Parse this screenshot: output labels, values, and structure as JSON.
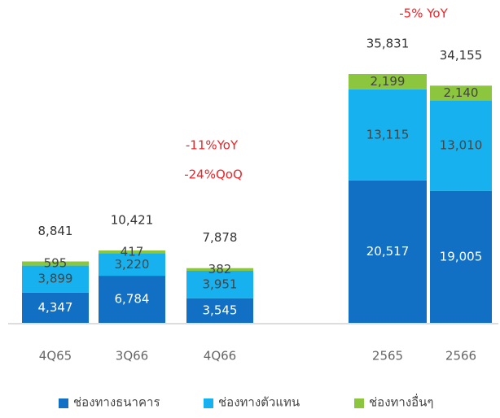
{
  "chart_data": {
    "type": "stacked_bar",
    "categories": [
      "4Q65",
      "3Q66",
      "4Q66",
      "2565",
      "2566"
    ],
    "series": [
      {
        "name": "ช่องทางธนาคาร",
        "color": "#1170c4",
        "values": [
          4347,
          6784,
          3545,
          20517,
          19005
        ],
        "value_labels": [
          "4,347",
          "6,784",
          "3,545",
          "20,517",
          "19,005"
        ]
      },
      {
        "name": "ช่องทางตัวแทน",
        "color": "#16b1ee",
        "values": [
          3899,
          3220,
          3951,
          13115,
          13010
        ],
        "value_labels": [
          "3,899",
          "3,220",
          "3,951",
          "13,115",
          "13,010"
        ]
      },
      {
        "name": "ช่องทางอื่นๆ",
        "color": "#8cc63e",
        "values": [
          595,
          417,
          382,
          2199,
          2140
        ],
        "value_labels": [
          "595",
          "417",
          "382",
          "2,199",
          "2,140"
        ]
      }
    ],
    "totals": [
      8841,
      10421,
      7878,
      35831,
      34155
    ],
    "total_labels": [
      "8,841",
      "10,421",
      "7,878",
      "35,831",
      "34,155"
    ],
    "annotations": [
      "-11%YoY",
      "-24%QoQ",
      "-5% YoY"
    ]
  }
}
